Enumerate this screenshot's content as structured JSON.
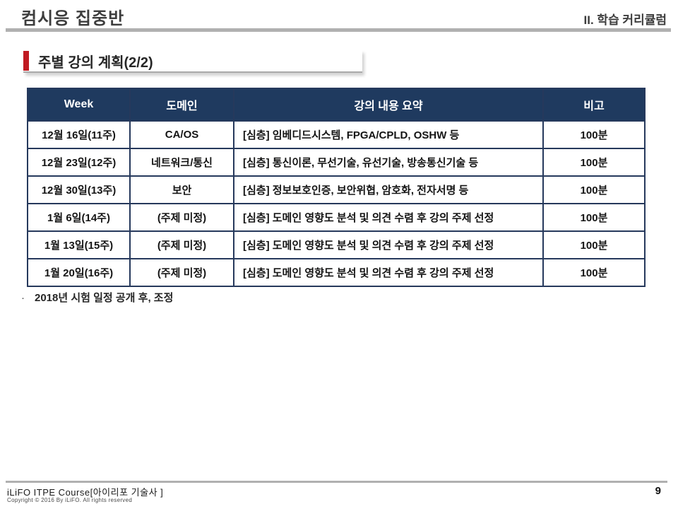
{
  "header": {
    "title_left": "컴시응 집중반",
    "title_right": "II. 학습 커리큘럼"
  },
  "section": {
    "title": "주별 강의 계획(2/2)"
  },
  "table": {
    "headers": [
      "Week",
      "도메인",
      "강의 내용 요약",
      "비고"
    ],
    "rows": [
      [
        "12월 16일(11주)",
        "CA/OS",
        "[심층] 임베디드시스템, FPGA/CPLD, OSHW 등",
        "100분"
      ],
      [
        "12월 23일(12주)",
        "네트워크/통신",
        "[심층] 통신이론, 무선기술, 유선기술, 방송통신기술 등",
        "100분"
      ],
      [
        "12월 30일(13주)",
        "보안",
        "[심층] 정보보호인증, 보안위협, 암호화, 전자서명 등",
        "100분"
      ],
      [
        "1월 6일(14주)",
        "(주제 미정)",
        "[심층] 도메인 영향도 분석 및 의견 수렴 후 강의 주제 선정",
        "100분"
      ],
      [
        "1월 13일(15주)",
        "(주제 미정)",
        "[심층] 도메인 영향도 분석 및 의견 수렴 후 강의 주제 선정",
        "100분"
      ],
      [
        "1월 20일(16주)",
        "(주제 미정)",
        "[심층] 도메인 영향도 분석 및 의견 수렴 후 강의 주제 선정",
        "100분"
      ]
    ]
  },
  "note": {
    "bullet": "·",
    "text": "2018년 시험 일정 공개 후, 조정"
  },
  "footer": {
    "course": "iLiFO ITPE Course[아이리포 기술사 ]",
    "copyright": "Copyright © 2016 By iLiFO. All rights reserved",
    "page_number": "9"
  },
  "colors": {
    "accent_red": "#c01a22",
    "table_header_bg": "#1f3a5f",
    "table_border": "#26395c",
    "rule_gray": "#b0b0b0"
  }
}
